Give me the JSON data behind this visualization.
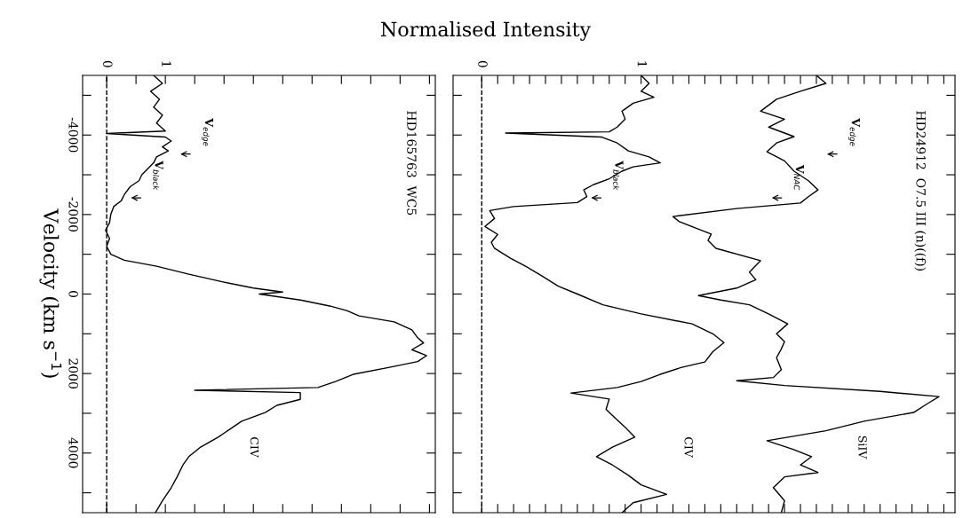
{
  "chart_data": [
    {
      "type": "line",
      "orientation": "horizontal",
      "title": "Normalised Intensity",
      "subtitle": "HD165763  WC5",
      "ylabel": "Velocity (km s$^{−1}$)",
      "xlim": [
        -0.41,
        5.6
      ],
      "ylim": [
        5500,
        -5500
      ],
      "xticks": [
        0,
        {
          "value": 0.5,
          "label": null
        },
        1,
        {
          "value": 1.5,
          "label": null
        },
        {
          "value": 2,
          "label": null
        },
        {
          "value": 2.5,
          "label": null
        },
        {
          "value": 3,
          "label": null
        },
        {
          "value": 3.5,
          "label": null
        },
        {
          "value": 4,
          "label": null
        },
        {
          "value": 4.5,
          "label": null
        },
        {
          "value": 5,
          "label": null
        },
        {
          "value": 5.5,
          "label": null
        }
      ],
      "yticks": [
        {
          "value": -5000,
          "label": null
        },
        -4000,
        {
          "value": -3000,
          "label": null
        },
        -2000,
        {
          "value": -1000,
          "label": null
        },
        0,
        {
          "value": 1000,
          "label": null
        },
        2000,
        {
          "value": 3000,
          "label": null
        },
        4000,
        {
          "value": 5000,
          "label": null
        }
      ],
      "ref_lines": [
        {
          "axis": "x",
          "value": 0,
          "line_style": "dashed",
          "color": "#000000"
        }
      ],
      "grid": false,
      "legend": false,
      "marker": "none",
      "line_style": "solid",
      "series": [
        {
          "name": "CIV",
          "color": "#000000",
          "x": [
            -5500,
            -5300,
            -5100,
            -4900,
            -4700,
            -4500,
            -4300,
            -4100,
            -4040,
            -3950,
            -3850,
            -3700,
            -3600,
            -3450,
            -3300,
            -3150,
            -3000,
            -2850,
            -2700,
            -2500,
            -2350,
            -2200,
            -2000,
            -1800,
            -1600,
            -1400,
            -1200,
            -1000,
            -850,
            -700,
            -500,
            -300,
            -150,
            -50,
            0,
            150,
            300,
            420,
            550,
            700,
            900,
            1100,
            1230,
            1400,
            1550,
            1700,
            1850,
            2020,
            2200,
            2350,
            2420,
            2480,
            2650,
            2800,
            2980,
            3200,
            3400,
            3600,
            3850,
            4090,
            4300,
            4600,
            4870,
            5200,
            5500
          ],
          "values": [
            0.8,
            0.95,
            0.75,
            0.9,
            0.8,
            0.95,
            0.85,
            1.0,
            0.0,
            1.0,
            1.1,
            0.95,
            1.05,
            0.85,
            0.8,
            0.7,
            0.6,
            0.55,
            0.4,
            0.3,
            0.25,
            0.12,
            0.07,
            0.05,
            -0.02,
            0.05,
            0.0,
            0.07,
            0.3,
            0.85,
            1.4,
            2.0,
            2.5,
            3.0,
            2.6,
            3.3,
            3.8,
            4.1,
            4.3,
            4.9,
            5.2,
            5.3,
            5.4,
            5.2,
            5.45,
            5.3,
            4.8,
            4.2,
            3.9,
            3.6,
            1.5,
            3.3,
            3.3,
            2.9,
            2.7,
            2.3,
            2.1,
            1.9,
            1.6,
            1.4,
            1.3,
            1.2,
            1.1,
            0.95,
            0.83
          ]
        }
      ],
      "annotations": [
        "V$_{edge}$",
        "V$_{black}$"
      ]
    },
    {
      "type": "line",
      "orientation": "horizontal",
      "subtitle": "HD24912  O7.5 III (n)((f))",
      "xlim": [
        -0.18,
        2.97
      ],
      "ylim": [
        5500,
        -5500
      ],
      "xticks": [
        0,
        {
          "value": 0.1,
          "label": null
        },
        {
          "value": 0.2,
          "label": null
        },
        {
          "value": 0.3,
          "label": null
        },
        {
          "value": 0.4,
          "label": null
        },
        {
          "value": 0.5,
          "label": null
        },
        {
          "value": 0.6,
          "label": null
        },
        {
          "value": 0.7,
          "label": null
        },
        {
          "value": 0.8,
          "label": null
        },
        {
          "value": 0.9,
          "label": null
        },
        1,
        {
          "value": 1.1,
          "label": null
        },
        {
          "value": 1.2,
          "label": null
        },
        {
          "value": 1.3,
          "label": null
        },
        {
          "value": 1.4,
          "label": null
        },
        {
          "value": 1.5,
          "label": null
        },
        {
          "value": 1.6,
          "label": null
        },
        {
          "value": 1.7,
          "label": null
        },
        {
          "value": 1.8,
          "label": null
        },
        {
          "value": 1.9,
          "label": null
        },
        {
          "value": 2,
          "label": null
        },
        {
          "value": 2.1,
          "label": null
        },
        {
          "value": 2.2,
          "label": null
        },
        {
          "value": 2.3,
          "label": null
        },
        {
          "value": 2.4,
          "label": null
        },
        {
          "value": 2.5,
          "label": null
        },
        {
          "value": 2.6,
          "label": null
        },
        {
          "value": 2.7,
          "label": null
        },
        {
          "value": 2.8,
          "label": null
        },
        {
          "value": 2.9,
          "label": null
        }
      ],
      "yticks": [
        {
          "value": -5000,
          "label": null
        },
        {
          "value": -4000,
          "label": null
        },
        {
          "value": -3000,
          "label": null
        },
        {
          "value": -2000,
          "label": null
        },
        {
          "value": -1000,
          "label": null
        },
        {
          "value": 0,
          "label": null
        },
        {
          "value": 1000,
          "label": null
        },
        {
          "value": 2000,
          "label": null
        },
        {
          "value": 3000,
          "label": null
        },
        {
          "value": 4000,
          "label": null
        },
        {
          "value": 5000,
          "label": null
        }
      ],
      "tick_labels": "x",
      "ref_lines": [
        {
          "axis": "x",
          "value": 0,
          "line_style": "dashed",
          "color": "#000000"
        }
      ],
      "grid": false,
      "legend": false,
      "marker": "none",
      "line_style": "solid",
      "series": [
        {
          "name": "SiIV",
          "color": "#000000",
          "x": [
            -5500,
            -5300,
            -5100,
            -4900,
            -4600,
            -4400,
            -4200,
            -3960,
            -3800,
            -3580,
            -3350,
            -3090,
            -2850,
            -2620,
            -2450,
            -2290,
            -2150,
            -1950,
            -1820,
            -1650,
            -1510,
            -1350,
            -1150,
            -840,
            -550,
            -360,
            -150,
            40,
            150,
            270,
            500,
            750,
            1000,
            1200,
            1380,
            1600,
            1900,
            2100,
            2180,
            2300,
            2450,
            2580,
            2750,
            2980,
            3200,
            3440,
            3690,
            3900,
            4090,
            4300,
            4490,
            4600,
            4870,
            5200,
            5500
          ],
          "values": [
            2.1,
            2.16,
            2.0,
            1.85,
            1.75,
            1.9,
            1.8,
            1.96,
            1.85,
            1.79,
            1.9,
            1.96,
            2.05,
            2.11,
            2.05,
            2.0,
            1.6,
            1.2,
            1.24,
            1.35,
            1.44,
            1.42,
            1.47,
            1.75,
            1.68,
            1.72,
            1.6,
            1.36,
            1.5,
            1.68,
            1.8,
            1.92,
            1.85,
            1.9,
            1.88,
            1.85,
            1.88,
            1.83,
            1.6,
            1.9,
            2.5,
            2.87,
            2.8,
            2.71,
            2.4,
            2.16,
            1.79,
            1.95,
            2.07,
            2.0,
            2.11,
            1.9,
            1.83,
            1.9,
            1.88
          ]
        },
        {
          "name": "CIV",
          "color": "#000000",
          "x": [
            -5500,
            -5300,
            -5100,
            -4950,
            -4800,
            -4600,
            -4400,
            -4200,
            -4080,
            -4050,
            -3950,
            -3800,
            -3600,
            -3450,
            -3300,
            -3200,
            -3090,
            -2900,
            -2750,
            -2620,
            -2450,
            -2300,
            -2200,
            -2100,
            -1900,
            -1700,
            -1500,
            -1300,
            -1150,
            -900,
            -690,
            -450,
            -200,
            0,
            270,
            500,
            750,
            1000,
            1220,
            1450,
            1710,
            1850,
            2020,
            2200,
            2350,
            2490,
            2640,
            2900,
            3130,
            3350,
            3600,
            3850,
            4090,
            4300,
            4560,
            4800,
            5040,
            5250,
            5500
          ],
          "values": [
            1.0,
            1.05,
            1.0,
            1.08,
            0.95,
            0.88,
            0.9,
            0.85,
            0.8,
            0.15,
            0.75,
            0.85,
            0.92,
            1.05,
            1.12,
            0.95,
            0.88,
            0.8,
            0.7,
            0.64,
            0.66,
            0.6,
            0.2,
            0.05,
            0.08,
            0.02,
            0.1,
            0.06,
            0.08,
            0.18,
            0.28,
            0.38,
            0.48,
            0.6,
            0.76,
            1.0,
            1.32,
            1.45,
            1.52,
            1.45,
            1.4,
            1.25,
            1.12,
            1.0,
            0.85,
            0.56,
            0.8,
            0.78,
            0.84,
            0.9,
            0.96,
            0.82,
            0.72,
            0.82,
            0.92,
            1.0,
            1.16,
            0.95,
            0.88
          ]
        }
      ],
      "annotations": [
        "V$_{edge}$",
        "V$_{NAC}$",
        "V$_{black}$"
      ]
    }
  ]
}
